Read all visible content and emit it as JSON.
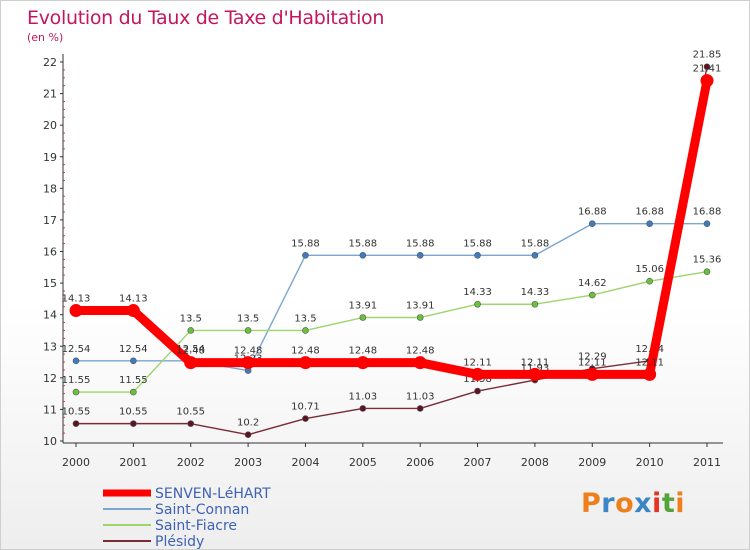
{
  "chart_data": {
    "type": "line",
    "title": "Evolution du Taux de Taxe d'Habitation",
    "unit": "(en %)",
    "xlabel": "",
    "ylabel": "",
    "x": [
      "2000",
      "2001",
      "2002",
      "2003",
      "2004",
      "2005",
      "2006",
      "2007",
      "2008",
      "2009",
      "2010",
      "2011"
    ],
    "ylim": [
      10,
      22
    ],
    "yticks": [
      10,
      11,
      12,
      13,
      14,
      15,
      16,
      17,
      18,
      19,
      20,
      21,
      22
    ],
    "grid": false,
    "legend_position": "bottom-left",
    "series": [
      {
        "name": "SENVEN-LéHART",
        "color": "#ff0000",
        "highlight": true,
        "values": [
          14.13,
          14.13,
          12.48,
          12.48,
          12.48,
          12.48,
          12.48,
          12.11,
          12.11,
          12.11,
          12.11,
          21.41
        ]
      },
      {
        "name": "Saint-Connan",
        "color": "#7aa6cf",
        "marker_color": "#3d7cc0",
        "values": [
          12.54,
          12.54,
          12.54,
          12.23,
          15.88,
          15.88,
          15.88,
          15.88,
          15.88,
          16.88,
          16.88,
          16.88
        ]
      },
      {
        "name": "Saint-Fiacre",
        "color": "#9ed56c",
        "marker_color": "#69c33a",
        "values": [
          11.55,
          11.55,
          13.5,
          13.5,
          13.5,
          13.91,
          13.91,
          14.33,
          14.33,
          14.62,
          15.06,
          15.36
        ]
      },
      {
        "name": "Plésidy",
        "color": "#7a2c35",
        "marker_color": "#5c1520",
        "values": [
          10.55,
          10.55,
          10.55,
          10.2,
          10.71,
          11.03,
          11.03,
          11.58,
          11.93,
          12.29,
          12.54,
          21.85
        ]
      }
    ]
  },
  "logo": {
    "text": "Proxiti",
    "letter_colors": [
      "#ef7f1a",
      "#3d86c6",
      "#ef7f1a",
      "#3d86c6",
      "#e63325",
      "#56a33a",
      "#ef7f1a"
    ]
  }
}
